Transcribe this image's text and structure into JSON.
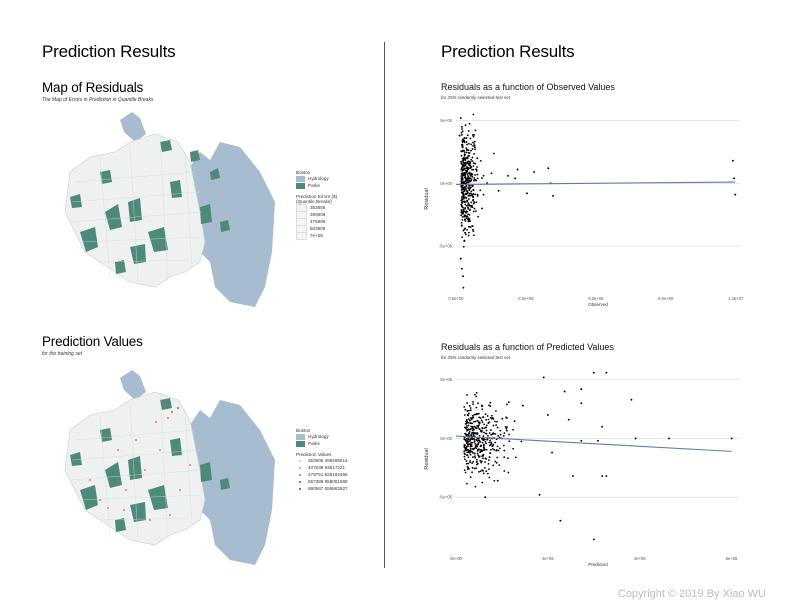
{
  "left_panel": {
    "header": "Prediction Results",
    "map1": {
      "title": "Map of Residuals",
      "subtitle": "The Map of Errors in Prediction in Quantile Breaks",
      "legend": {
        "base_title": "Boston",
        "base_items": [
          {
            "label": "Hydrology",
            "color": "#a8bccf"
          },
          {
            "label": "Parks",
            "color": "#4e8a7a"
          }
        ],
        "scale_title": "Prediction Errors ($)",
        "scale_subtitle": "(Quantile Breaks)",
        "scale_items": [
          "353656",
          "395906",
          "475906",
          "503906",
          "7e+05"
        ]
      }
    },
    "map2": {
      "title": "Prediction Values",
      "subtitle": "for the training set",
      "legend": {
        "base_title": "Boston",
        "base_items": [
          {
            "label": "Hydrology",
            "color": "#a8bccf"
          },
          {
            "label": "Parks",
            "color": "#4e8a7a"
          }
        ],
        "scale_title": "Prediction Values",
        "scale_items": [
          "353906 399265514",
          "407638 93617221",
          "479751 826192496",
          "557388 958061588",
          "690567 559882827"
        ]
      }
    }
  },
  "right_panel": {
    "header": "Prediction Results"
  },
  "colors": {
    "hydrology": "#a8bccf",
    "parks": "#4e8a7a",
    "land": "#f1f3f2",
    "fit_line": "#5b7fad",
    "points": "#000000",
    "divider": "#555555"
  },
  "chart_data": [
    {
      "type": "scatter",
      "title": "Residuals as a function of Observed Values",
      "subtitle": "for 25% randomly selected test set",
      "xlabel": "Observed",
      "ylabel": "Residual",
      "x_ticks": [
        "0.0e+00",
        "3.0e+06",
        "6.0e+06",
        "9.0e+06",
        "1.2e+07"
      ],
      "y_ticks": [
        "5e+05",
        "0e+00",
        "-5e+05"
      ],
      "xlim": [
        0,
        12000000
      ],
      "ylim": [
        -850000,
        600000
      ],
      "grid": true,
      "fit_line": [
        [
          0,
          -10000
        ],
        [
          11800000,
          10000
        ]
      ],
      "cluster": {
        "x_center": 300000,
        "x_spread": 550000,
        "y_spread": 190000,
        "count": 420
      },
      "extra_points": [
        [
          200000,
          520000
        ],
        [
          250000,
          450000
        ],
        [
          150000,
          380000
        ],
        [
          300000,
          350000
        ],
        [
          200000,
          -600000
        ],
        [
          250000,
          -680000
        ],
        [
          300000,
          -740000
        ],
        [
          350000,
          -460000
        ],
        [
          1500000,
          80000
        ],
        [
          1800000,
          -60000
        ],
        [
          2200000,
          60000
        ],
        [
          2500000,
          40000
        ],
        [
          2600000,
          110000
        ],
        [
          3300000,
          90000
        ],
        [
          3000000,
          -80000
        ],
        [
          3900000,
          120000
        ],
        [
          4000000,
          0
        ],
        [
          4100000,
          -100000
        ],
        [
          11700000,
          180000
        ],
        [
          11750000,
          40000
        ],
        [
          11800000,
          -90000
        ],
        [
          900000,
          200000
        ],
        [
          1100000,
          -200000
        ]
      ]
    },
    {
      "type": "scatter",
      "title": "Residuals as a function of Predicted Values",
      "subtitle": "for 25% randomly selected test set",
      "xlabel": "Predicted",
      "ylabel": "Residual",
      "x_ticks": [
        "0e+00",
        "2e+06",
        "4e+06",
        "6e+06"
      ],
      "y_ticks": [
        "5e+05",
        "0e+00",
        "-5e+05"
      ],
      "xlim": [
        0,
        6800000
      ],
      "ylim": [
        -950000,
        600000
      ],
      "grid": true,
      "fit_line": [
        [
          0,
          20000
        ],
        [
          6600000,
          -110000
        ]
      ],
      "cluster": {
        "x_center": 300000,
        "x_spread": 700000,
        "y_spread": 150000,
        "count": 420
      },
      "extra_points": [
        [
          2100000,
          520000
        ],
        [
          2600000,
          400000
        ],
        [
          3300000,
          560000
        ],
        [
          3600000,
          560000
        ],
        [
          3000000,
          420000
        ],
        [
          4200000,
          330000
        ],
        [
          3000000,
          300000
        ],
        [
          2200000,
          200000
        ],
        [
          2700000,
          160000
        ],
        [
          1600000,
          280000
        ],
        [
          1200000,
          180000
        ],
        [
          3500000,
          100000
        ],
        [
          5100000,
          0
        ],
        [
          4300000,
          0
        ],
        [
          6600000,
          0
        ],
        [
          3000000,
          -20000
        ],
        [
          3400000,
          -20000
        ],
        [
          2300000,
          -120000
        ],
        [
          2800000,
          -320000
        ],
        [
          3500000,
          -320000
        ],
        [
          3600000,
          -320000
        ],
        [
          2000000,
          -480000
        ],
        [
          2500000,
          -700000
        ],
        [
          3300000,
          -860000
        ],
        [
          1000000,
          -360000
        ],
        [
          700000,
          -500000
        ]
      ]
    }
  ]
}
